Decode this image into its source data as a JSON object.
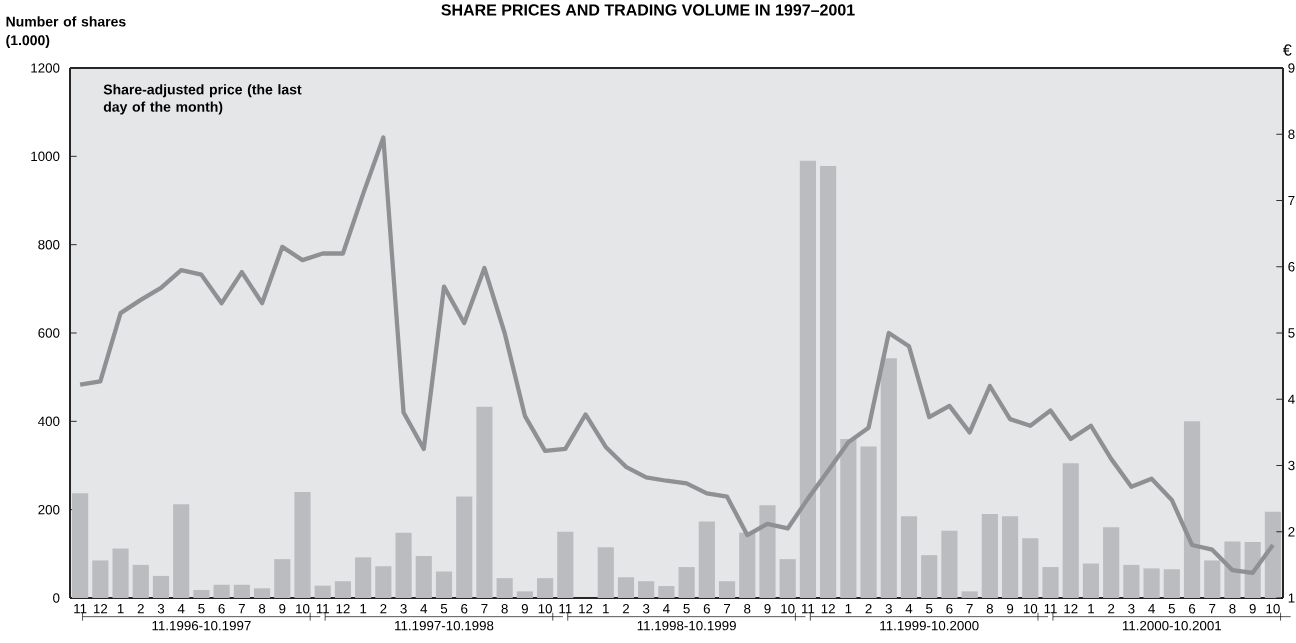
{
  "chart_data": {
    "type": "bar",
    "title": "SHARE PRICES AND TRADING VOLUME IN 1997–2001",
    "ylabel": "Number of shares (1.000)",
    "y2label": "€",
    "categories": [
      "11",
      "12",
      "1",
      "2",
      "3",
      "4",
      "5",
      "6",
      "7",
      "8",
      "9",
      "10",
      "11",
      "12",
      "1",
      "2",
      "3",
      "4",
      "5",
      "6",
      "7",
      "8",
      "9",
      "10",
      "11",
      "12",
      "1",
      "2",
      "3",
      "4",
      "5",
      "6",
      "7",
      "8",
      "9",
      "10",
      "11",
      "12",
      "1",
      "2",
      "3",
      "4",
      "5",
      "6",
      "7",
      "8",
      "9",
      "10",
      "11",
      "12",
      "1",
      "2",
      "3",
      "4",
      "5",
      "6",
      "7",
      "8",
      "9",
      "10"
    ],
    "series": [
      {
        "color": "#bbbcc0",
        "values": [
          237,
          85,
          112,
          75,
          50,
          212,
          18,
          30,
          30,
          22,
          88,
          240,
          28,
          38,
          92,
          72,
          148,
          95,
          60,
          230,
          433,
          45,
          15,
          45,
          150,
          0,
          115,
          47,
          38,
          27,
          70,
          173,
          38,
          148,
          210,
          88,
          990,
          978,
          360,
          343,
          543,
          185,
          97,
          152,
          15,
          190,
          185,
          135,
          70,
          305,
          78,
          160,
          75,
          67,
          65,
          400,
          85,
          128,
          127,
          195
        ]
      },
      {
        "type": "line",
        "axis": "y2",
        "name": "Share-adjusted price (the last day of the month)",
        "color": "#8e9093",
        "line_style": "solid",
        "marker": "none",
        "values": [
          4.22,
          4.27,
          5.3,
          5.5,
          5.68,
          5.95,
          5.88,
          5.45,
          5.92,
          5.45,
          6.3,
          6.1,
          6.2,
          6.2,
          7.1,
          7.95,
          3.8,
          3.25,
          5.7,
          5.15,
          5.98,
          5.0,
          3.75,
          3.22,
          3.25,
          3.77,
          3.28,
          2.98,
          2.82,
          2.77,
          2.73,
          2.58,
          2.53,
          1.95,
          2.12,
          2.05,
          2.5,
          2.92,
          3.35,
          3.57,
          5.0,
          4.8,
          3.73,
          3.9,
          3.5,
          4.2,
          3.7,
          3.6,
          3.83,
          3.4,
          3.6,
          3.1,
          2.68,
          2.8,
          2.48,
          1.8,
          1.73,
          1.42,
          1.38,
          1.8
        ]
      }
    ],
    "ylim": [
      0,
      1200
    ],
    "yticks": [
      0,
      200,
      400,
      600,
      800,
      1000,
      1200
    ],
    "y2lim": [
      1,
      9
    ],
    "y2ticks": [
      1,
      2,
      3,
      4,
      5,
      6,
      7,
      8,
      9
    ],
    "legend": "top left",
    "grid": false,
    "annotations": [
      "11.1996-10.1997",
      "11.1997-10.1998",
      "11.1998-10.1999",
      "11.1999-10.2000",
      "11.2000-10.2001"
    ]
  }
}
